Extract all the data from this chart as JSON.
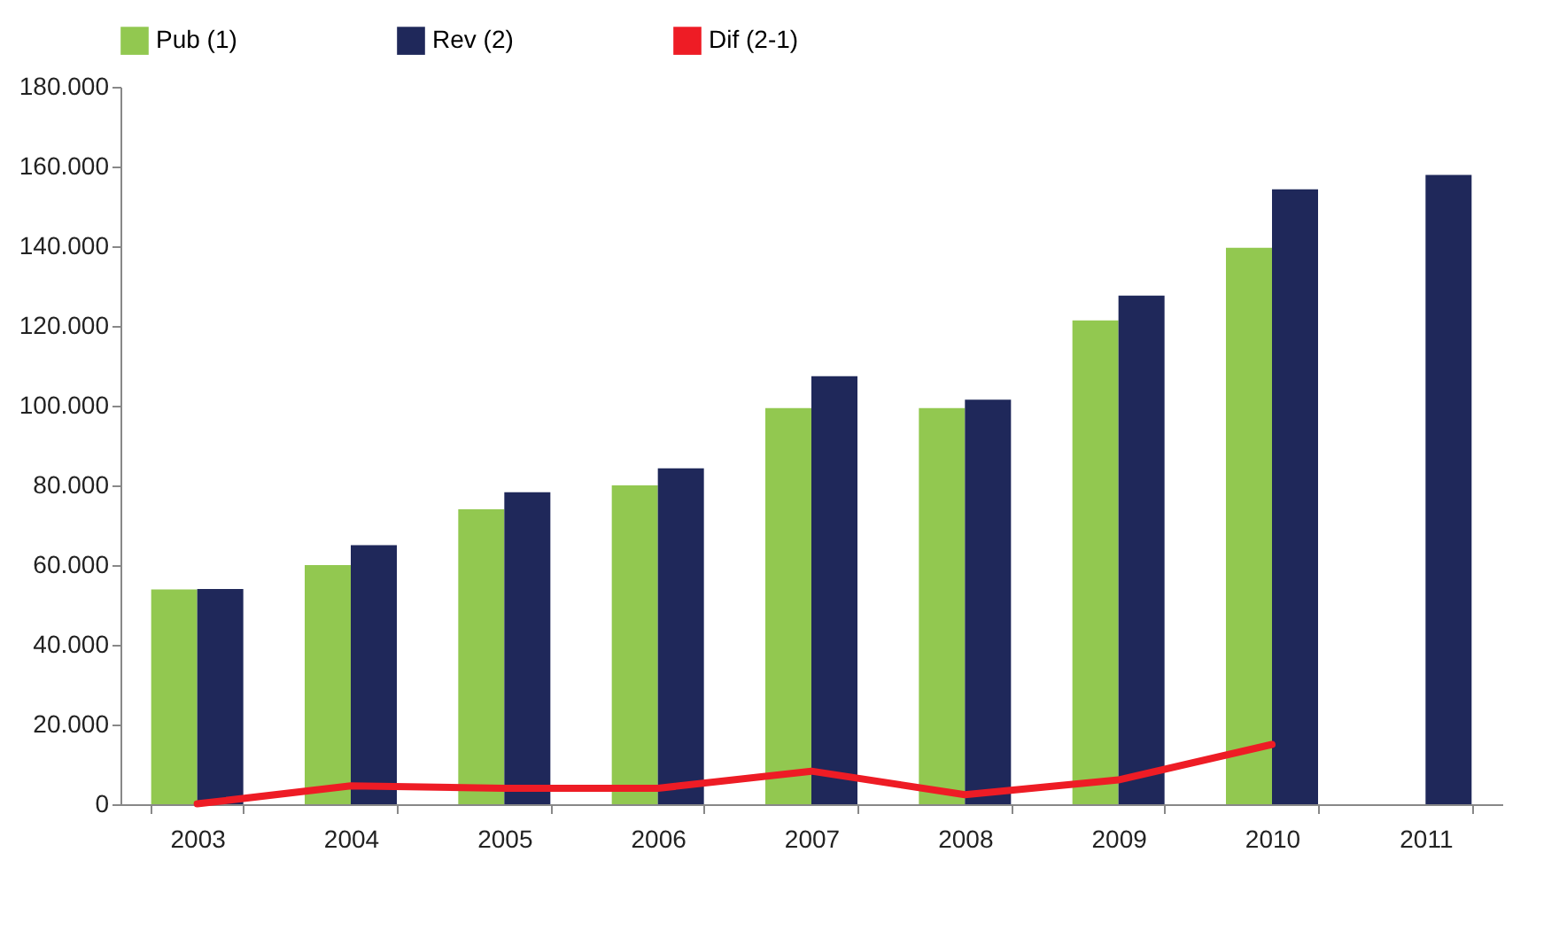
{
  "chart_data": {
    "type": "bar",
    "categories": [
      "2003",
      "2004",
      "2005",
      "2006",
      "2007",
      "2008",
      "2009",
      "2010",
      "2011"
    ],
    "series": [
      {
        "name": "Pub (1)",
        "color": "#92c850",
        "values": [
          53900,
          60000,
          74000,
          80000,
          99400,
          99400,
          121400,
          139600,
          null
        ]
      },
      {
        "name": "Rev (2)",
        "color": "#1f285a",
        "values": [
          54000,
          65000,
          78300,
          84300,
          107400,
          101500,
          127600,
          154300,
          157900
        ]
      },
      {
        "name": "Dif (2-1)",
        "type": "line",
        "color": "#ee1c25",
        "values": [
          100,
          4600,
          4000,
          4000,
          8300,
          2400,
          6100,
          15000,
          null
        ]
      }
    ],
    "ylim": [
      0,
      180000
    ],
    "yticks": [
      0,
      {
        "value": 20000,
        "label": "20.000"
      },
      {
        "value": 40000,
        "label": "40.000"
      },
      {
        "value": 60000,
        "label": "60.000"
      },
      {
        "value": 80000,
        "label": "80.000"
      },
      {
        "value": 100000,
        "label": "100.000"
      },
      {
        "value": 120000,
        "label": "120.000"
      },
      {
        "value": 140000,
        "label": "140.000"
      },
      {
        "value": 160000,
        "label": "160.000"
      },
      {
        "value": 180000,
        "label": "180.000"
      }
    ],
    "grid": false,
    "legend": "top"
  }
}
